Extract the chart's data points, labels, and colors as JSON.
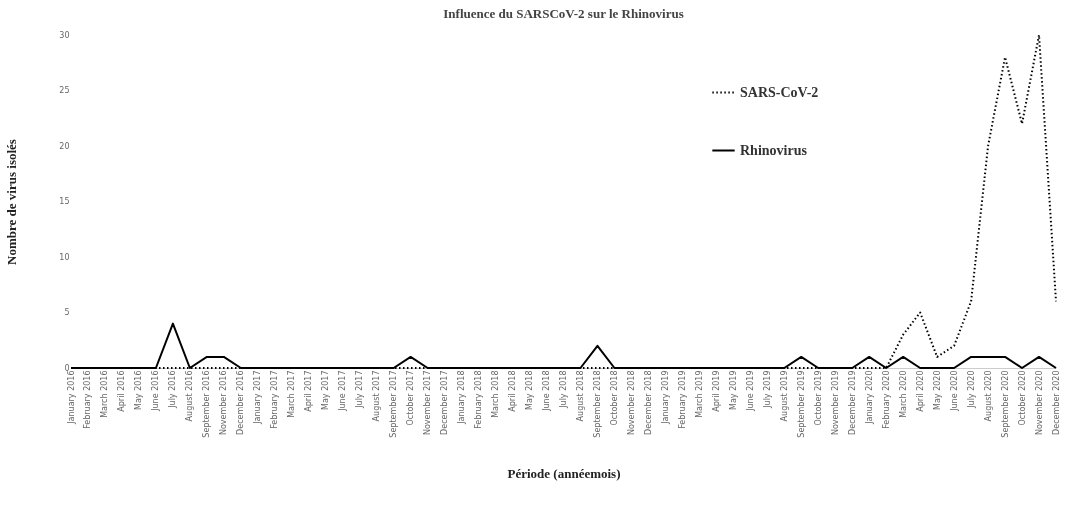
{
  "chart_data": {
    "type": "line",
    "title": "Influence du SARSCoV-2 sur le Rhinovirus",
    "xlabel": "Période (annéemois)",
    "ylabel": "Nombre de virus isolés",
    "categories": [
      "January 2016",
      "February 2016",
      "March 2016",
      "April 2016",
      "May 2016",
      "June 2016",
      "July 2016",
      "August 2016",
      "September 2016",
      "November 2016",
      "December 2016",
      "January 2017",
      "February 2017",
      "March 2017",
      "April 2017",
      "May 2017",
      "June 2017",
      "July 2017",
      "August 2017",
      "September 2017",
      "October 2017",
      "November 2017",
      "December 2017",
      "January 2018",
      "February 2018",
      "March 2018",
      "April 2018",
      "May 2018",
      "June 2018",
      "July 2018",
      "August 2018",
      "September 2018",
      "October 2018",
      "November 2018",
      "December 2018",
      "January 2019",
      "February 2019",
      "March 2019",
      "April 2019",
      "May 2019",
      "June 2019",
      "July 2019",
      "August 2019",
      "September 2019",
      "October 2019",
      "November 2019",
      "December 2019",
      "January 2020",
      "February 2020",
      "March 2020",
      "April 2020",
      "May 2020",
      "June 2020",
      "July 2020",
      "August 2020",
      "September 2020",
      "October 2020",
      "November 2020",
      "December 2020"
    ],
    "series": [
      {
        "name": "SARS-CoV-2",
        "color": "#000000",
        "line_style": "dotted",
        "values": [
          0,
          0,
          0,
          0,
          0,
          0,
          0,
          0,
          0,
          0,
          0,
          0,
          0,
          0,
          0,
          0,
          0,
          0,
          0,
          0,
          0,
          0,
          0,
          0,
          0,
          0,
          0,
          0,
          0,
          0,
          0,
          0,
          0,
          0,
          0,
          0,
          0,
          0,
          0,
          0,
          0,
          0,
          0,
          0,
          0,
          0,
          0,
          0,
          0,
          3,
          5,
          1,
          2,
          6,
          20,
          28,
          22,
          30,
          6
        ]
      },
      {
        "name": "Rhinovirus",
        "color": "#000000",
        "line_style": "solid",
        "values": [
          0,
          0,
          0,
          0,
          0,
          0,
          4,
          0,
          1,
          1,
          0,
          0,
          0,
          0,
          0,
          0,
          0,
          0,
          0,
          0,
          1,
          0,
          0,
          0,
          0,
          0,
          0,
          0,
          0,
          0,
          0,
          2,
          0,
          0,
          0,
          0,
          0,
          0,
          0,
          0,
          0,
          0,
          0,
          1,
          0,
          0,
          0,
          1,
          0,
          1,
          0,
          0,
          0,
          1,
          1,
          1,
          0,
          1,
          0
        ]
      }
    ],
    "ylim": [
      0,
      30
    ],
    "yticks": [
      0,
      5,
      10,
      15,
      20,
      25,
      30
    ],
    "grid": false,
    "legend": "top right"
  }
}
